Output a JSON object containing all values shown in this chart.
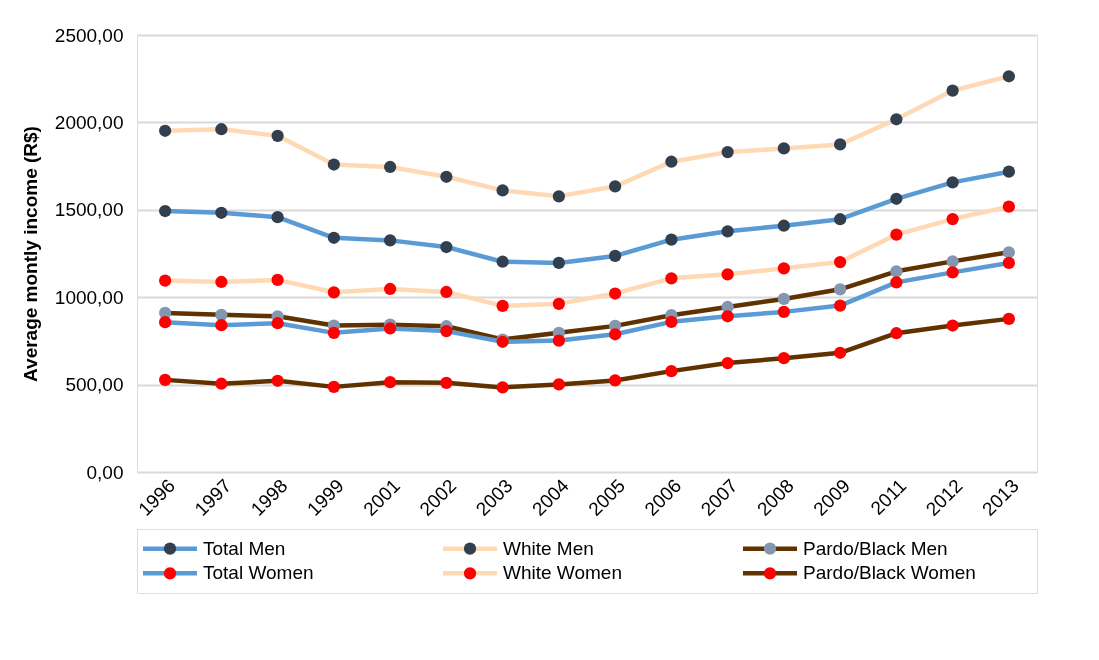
{
  "chart_data": {
    "type": "line",
    "ylabel": "Average montly income (R$)",
    "categories": [
      "1996",
      "1997",
      "1998",
      "1999",
      "2001",
      "2002",
      "2003",
      "2004",
      "2005",
      "2006",
      "2007",
      "2008",
      "2009",
      "2011",
      "2012",
      "2013"
    ],
    "ylim": [
      0,
      2500
    ],
    "yticks": [
      {
        "value": 0,
        "label": "0,00"
      },
      {
        "value": 500,
        "label": "500,00"
      },
      {
        "value": 1000,
        "label": "1000,00"
      },
      {
        "value": 1500,
        "label": "1500,00"
      },
      {
        "value": 2000,
        "label": "2000,00"
      },
      {
        "value": 2500,
        "label": "2500,00"
      }
    ],
    "grid": "y",
    "legend": "bottom",
    "marker": "circle",
    "line_style": "solid",
    "series": [
      {
        "name": "Total Men",
        "color": "#5b9bd5",
        "colors": [
          "#323f4f",
          "#323f4f",
          "#323f4f",
          "#323f4f",
          "#323f4f",
          "#323f4f",
          "#323f4f",
          "#323f4f",
          "#323f4f",
          "#323f4f",
          "#323f4f",
          "#323f4f",
          "#323f4f",
          "#323f4f",
          "#323f4f",
          "#323f4f"
        ],
        "values": [
          1493,
          1483,
          1458,
          1340,
          1325,
          1287,
          1203,
          1196,
          1236,
          1329,
          1377,
          1409,
          1446,
          1563,
          1657,
          1718
        ]
      },
      {
        "name": "White Men",
        "color": "#ffd9b3",
        "colors": [
          "#323f4f",
          "#323f4f",
          "#323f4f",
          "#323f4f",
          "#323f4f",
          "#323f4f",
          "#323f4f",
          "#323f4f",
          "#323f4f",
          "#323f4f",
          "#323f4f",
          "#323f4f",
          "#323f4f",
          "#323f4f",
          "#323f4f",
          "#323f4f"
        ],
        "values": [
          1952,
          1961,
          1923,
          1759,
          1745,
          1689,
          1611,
          1577,
          1634,
          1775,
          1830,
          1851,
          1874,
          2018,
          2182,
          2264
        ]
      },
      {
        "name": "Pardo/Black Men",
        "color": "#5f3200",
        "colors": [
          "#8497b0",
          "#8497b0",
          "#8497b0",
          "#8497b0",
          "#8497b0",
          "#8497b0",
          "#8497b0",
          "#8497b0",
          "#8497b0",
          "#8497b0",
          "#8497b0",
          "#8497b0",
          "#8497b0",
          "#8497b0",
          "#8497b0",
          "#8497b0"
        ],
        "values": [
          910,
          899,
          891,
          838,
          843,
          834,
          758,
          796,
          836,
          897,
          944,
          990,
          1045,
          1148,
          1205,
          1257
        ]
      },
      {
        "name": "Total Women",
        "color": "#5b9bd5",
        "colors": [
          "#ff0000",
          "#ff0000",
          "#ff0000",
          "#ff0000",
          "#ff0000",
          "#ff0000",
          "#ff0000",
          "#ff0000",
          "#ff0000",
          "#ff0000",
          "#ff0000",
          "#ff0000",
          "#ff0000",
          "#ff0000",
          "#ff0000",
          "#ff0000"
        ],
        "values": [
          857,
          840,
          851,
          796,
          821,
          806,
          745,
          752,
          788,
          859,
          891,
          916,
          952,
          1085,
          1142,
          1196
        ]
      },
      {
        "name": "White Women",
        "color": "#ffd9b3",
        "colors": [
          "#ff0000",
          "#ff0000",
          "#ff0000",
          "#ff0000",
          "#ff0000",
          "#ff0000",
          "#ff0000",
          "#ff0000",
          "#ff0000",
          "#ff0000",
          "#ff0000",
          "#ff0000",
          "#ff0000",
          "#ff0000",
          "#ff0000",
          "#ff0000"
        ],
        "values": [
          1095,
          1087,
          1099,
          1028,
          1047,
          1030,
          950,
          962,
          1021,
          1108,
          1131,
          1165,
          1201,
          1358,
          1447,
          1518
        ]
      },
      {
        "name": "Pardo/Black Women",
        "color": "#5f3200",
        "colors": [
          "#ff0000",
          "#ff0000",
          "#ff0000",
          "#ff0000",
          "#ff0000",
          "#ff0000",
          "#ff0000",
          "#ff0000",
          "#ff0000",
          "#ff0000",
          "#ff0000",
          "#ff0000",
          "#ff0000",
          "#ff0000",
          "#ff0000",
          "#ff0000"
        ],
        "values": [
          527,
          505,
          522,
          487,
          514,
          510,
          484,
          501,
          524,
          577,
          623,
          651,
          682,
          794,
          838,
          876
        ]
      }
    ]
  }
}
